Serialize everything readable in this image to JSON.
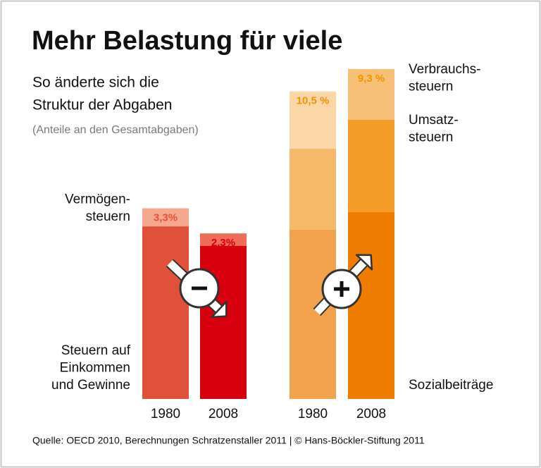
{
  "chart_data": {
    "type": "stacked-bar-groups",
    "title": "Mehr Belastung für viele",
    "subtitle": [
      "So änderte sich die",
      "Struktur der Abgaben"
    ],
    "note": "(Anteile an den Gesamtabgaben)",
    "source": "Quelle: OECD 2010, Berechnungen Schratzenstaller 2011 | © Hans-Böckler-Stiftung 2011",
    "groups": [
      {
        "categories": [
          "1980",
          "2008"
        ],
        "legend_side": "left",
        "sign": "minus",
        "series": [
          {
            "name": [
              "Steuern auf",
              "Einkommen",
              "und Gewinne"
            ],
            "colors": [
              "#e0513b",
              "#d6000f"
            ],
            "values": [
              31.6,
              28.0
            ]
          },
          {
            "name": [
              "Vermögen-",
              "steuern"
            ],
            "colors": [
              "#f4a88f",
              "#ee6d59"
            ],
            "label_colors": [
              "#e6503a",
              "#d40010"
            ],
            "values": [
              3.3,
              2.3
            ],
            "value_labels": [
              "3,3%",
              "2,3%"
            ]
          }
        ]
      },
      {
        "categories": [
          "1980",
          "2008"
        ],
        "legend_side": "right",
        "sign": "plus",
        "series": [
          {
            "name": [
              "Sozialbeiträge"
            ],
            "colors": [
              "#f2a24c",
              "#ef7d00"
            ],
            "values": [
              31.0,
              34.2
            ]
          },
          {
            "name": [
              "Umsatz-",
              "steuern"
            ],
            "colors": [
              "#f6b96a",
              "#f39c28"
            ],
            "values": [
              14.8,
              16.9
            ]
          },
          {
            "name": [
              "Verbrauchs-",
              "steuern"
            ],
            "colors": [
              "#fbd7a8",
              "#f8c077"
            ],
            "label_colors": [
              "#f39200",
              "#f39200"
            ],
            "values": [
              10.5,
              9.3
            ],
            "value_labels": [
              "10,5 %",
              "9,3 %"
            ]
          }
        ]
      }
    ]
  }
}
